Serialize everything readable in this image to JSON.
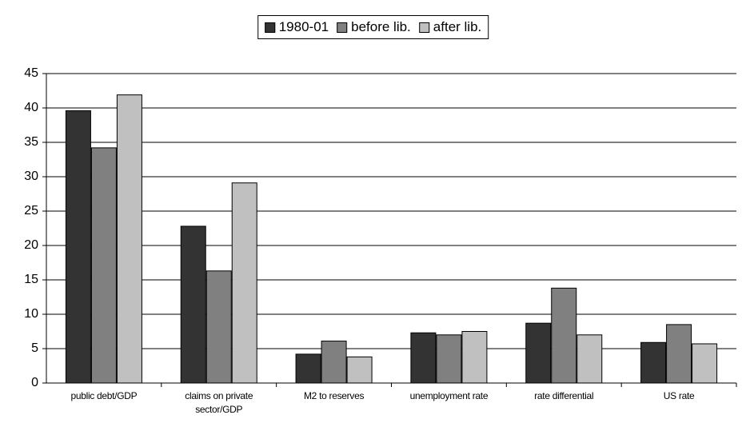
{
  "chart_data": {
    "type": "bar",
    "categories": [
      "public debt/GDP",
      "claims on private sector/GDP",
      "M2 to reserves",
      "unemployment rate",
      "rate differential",
      "US rate"
    ],
    "series": [
      {
        "name": "1980-01",
        "color": "#333333",
        "values": [
          39.6,
          22.8,
          4.2,
          7.3,
          8.7,
          5.9
        ]
      },
      {
        "name": "before lib.",
        "color": "#808080",
        "values": [
          34.2,
          16.3,
          6.1,
          7.0,
          13.8,
          8.5
        ]
      },
      {
        "name": "after lib.",
        "color": "#c0c0c0",
        "values": [
          41.9,
          29.1,
          3.8,
          7.5,
          7.0,
          5.7
        ]
      }
    ],
    "ylim": [
      0,
      45
    ],
    "yticks": [
      0,
      5,
      10,
      15,
      20,
      25,
      30,
      35,
      40,
      45
    ],
    "grid": true,
    "legend": "top"
  }
}
